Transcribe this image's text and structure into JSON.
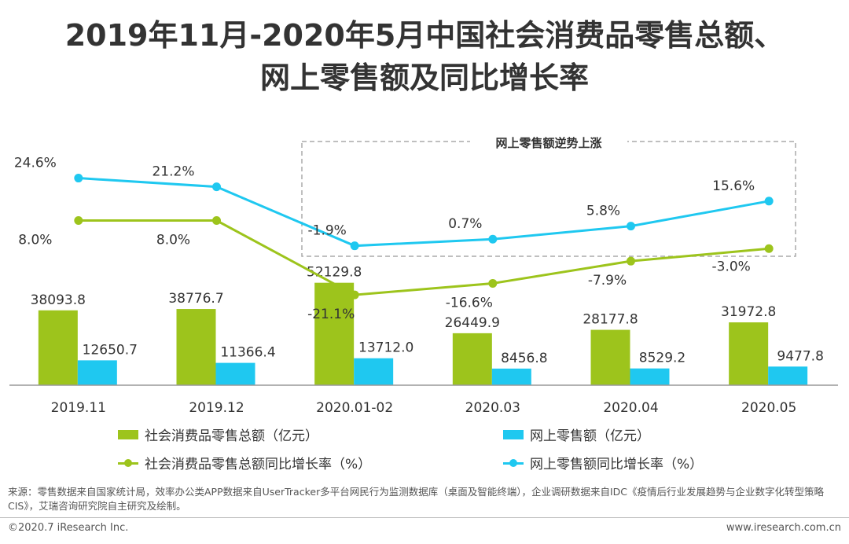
{
  "title": {
    "line1": "2019年11月-2020年5月中国社会消费品零售总额、",
    "line2": "网上零售额及同比增长率"
  },
  "chart_data": {
    "type": "bar",
    "categories": [
      "2019.11",
      "2019.12",
      "2020.01-02",
      "2020.03",
      "2020.04",
      "2020.05"
    ],
    "series": [
      {
        "name": "社会消费品零售总额（亿元）",
        "kind": "bar",
        "color": "#9DC41C",
        "values": [
          38093.8,
          38776.7,
          52129.8,
          26449.9,
          28177.8,
          31972.8
        ],
        "labels": [
          "38093.8",
          "38776.7",
          "52129.8",
          "26449.9",
          "28177.8",
          "31972.8"
        ]
      },
      {
        "name": "网上零售额（亿元）",
        "kind": "bar",
        "color": "#1FC8F0",
        "values": [
          12650.7,
          11366.4,
          13712.0,
          8456.8,
          8529.2,
          9477.8
        ],
        "labels": [
          "12650.7",
          "11366.4",
          "13712.0",
          "8456.8",
          "8529.2",
          "9477.8"
        ]
      },
      {
        "name": "社会消费品零售总额同比增长率（%）",
        "kind": "line",
        "color": "#9DC41C",
        "values": [
          8.0,
          8.0,
          -21.1,
          -16.6,
          -7.9,
          -3.0
        ],
        "labels": [
          "8.0%",
          "8.0%",
          "-21.1%",
          "-16.6%",
          "-7.9%",
          "-3.0%"
        ]
      },
      {
        "name": "网上零售额同比增长率（%）",
        "kind": "line",
        "color": "#1FC8F0",
        "values": [
          24.6,
          21.2,
          -1.9,
          0.7,
          5.8,
          15.6
        ],
        "labels": [
          "24.6%",
          "21.2%",
          "-1.9%",
          "0.7%",
          "5.8%",
          "15.6%"
        ]
      }
    ],
    "bar_ylim": [
      0,
      60000
    ],
    "line_ylim": [
      -30,
      30
    ],
    "annotation": "网上零售额逆势上涨",
    "legend": [
      "社会消费品零售总额（亿元）",
      "网上零售额（亿元）",
      "社会消费品零售总额同比增长率（%）",
      "网上零售额同比增长率（%）"
    ]
  },
  "source": "来源：零售数据来自国家统计局，效率办公类APP数据来自UserTracker多平台网民行为监测数据库（桌面及智能终端），企业调研数据来自IDC《疫情后行业发展趋势与企业数字化转型策略CIS》，艾瑞咨询研究院自主研究及绘制。",
  "footer": {
    "copyright": "©2020.7 iResearch Inc.",
    "website": "www.iresearch.com.cn"
  }
}
